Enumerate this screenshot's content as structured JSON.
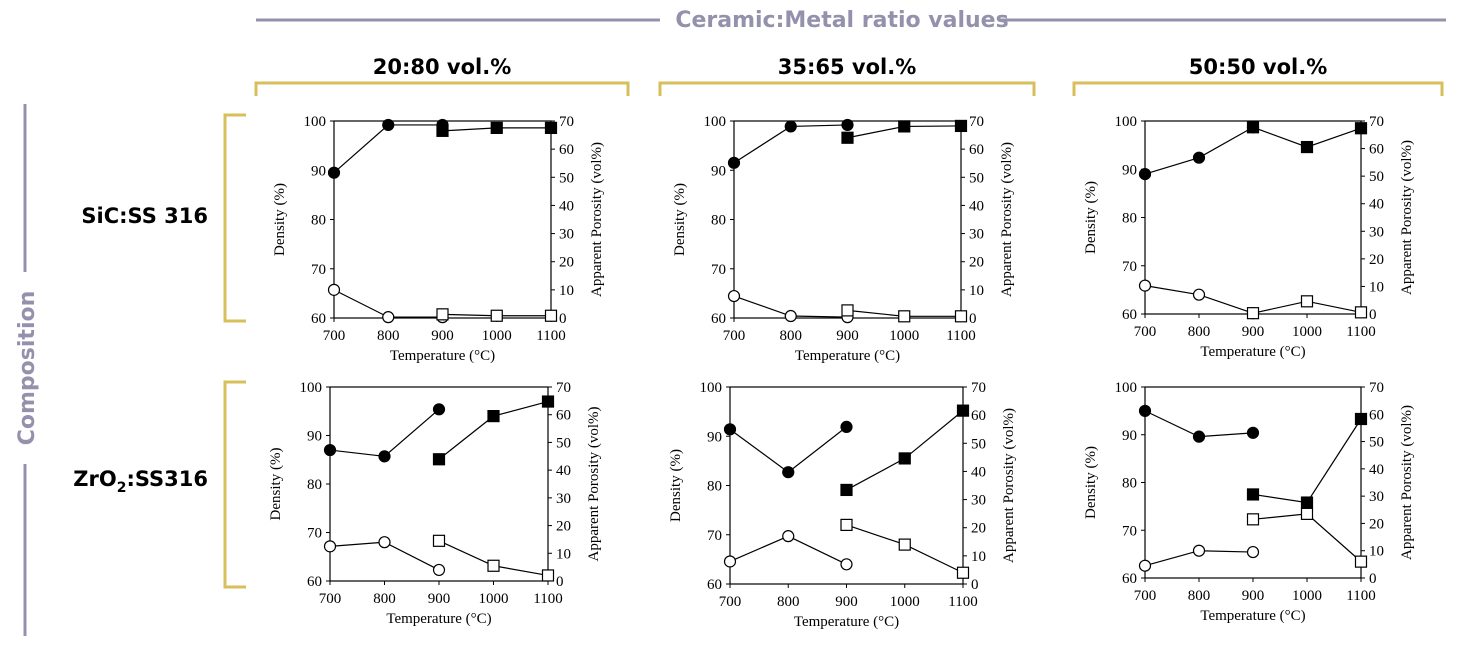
{
  "header": {
    "ratio_title": "Ceramic:Metal ratio values",
    "composition_title": "Composition",
    "columns": [
      "20:80 vol.%",
      "35:65 vol.%",
      "50:50 vol.%"
    ],
    "rows": [
      {
        "base": "SiC:SS 316",
        "sub": ""
      },
      {
        "base": "ZrO",
        "sub": "2",
        "rest": ":SS316"
      }
    ]
  },
  "colors": {
    "accent_gray": "#9491ad",
    "bracket_gold": "#d9bf5c",
    "ink": "#000000"
  },
  "chart_data": [
    {
      "id": "SiC-20:80",
      "type": "line",
      "xlabel": "Temperature (°C)",
      "ylabel": "Density (%)",
      "y2label": "Apparent Porosity (vol%)",
      "x_ticks": [
        700,
        800,
        900,
        1000,
        1100
      ],
      "ylim": [
        60,
        100
      ],
      "y_ticks": [
        60,
        70,
        80,
        90,
        100
      ],
      "y2lim": [
        0,
        70
      ],
      "y2_ticks": [
        0,
        10,
        20,
        30,
        40,
        50,
        60,
        70
      ],
      "series": [
        {
          "marker": "circle",
          "fill": "filled",
          "axis": "left",
          "points": [
            [
              700,
              89.5
            ],
            [
              800,
              99.2
            ],
            [
              900,
              99.2
            ]
          ]
        },
        {
          "marker": "square",
          "fill": "filled",
          "axis": "left",
          "points": [
            [
              900,
              98.0
            ],
            [
              1000,
              98.6
            ],
            [
              1100,
              98.6
            ]
          ]
        },
        {
          "marker": "circle",
          "fill": "open",
          "axis": "right",
          "points": [
            [
              700,
              10
            ],
            [
              800,
              0.3
            ],
            [
              900,
              0.3
            ]
          ]
        },
        {
          "marker": "square",
          "fill": "open",
          "axis": "right",
          "points": [
            [
              900,
              1.3
            ],
            [
              1000,
              0.8
            ],
            [
              1100,
              0.8
            ]
          ]
        }
      ]
    },
    {
      "id": "SiC-35:65",
      "type": "line",
      "xlabel": "Temperature (°C)",
      "ylabel": "Density (%)",
      "y2label": "Apparent Porosity (vol%)",
      "x_ticks": [
        700,
        800,
        900,
        1000,
        1100
      ],
      "ylim": [
        60,
        100
      ],
      "y_ticks": [
        60,
        70,
        80,
        90,
        100
      ],
      "y2lim": [
        0,
        70
      ],
      "y2_ticks": [
        0,
        10,
        20,
        30,
        40,
        50,
        60,
        70
      ],
      "series": [
        {
          "marker": "circle",
          "fill": "filled",
          "axis": "left",
          "points": [
            [
              700,
              91.5
            ],
            [
              800,
              98.9
            ],
            [
              900,
              99.2
            ]
          ]
        },
        {
          "marker": "square",
          "fill": "filled",
          "axis": "left",
          "points": [
            [
              900,
              96.6
            ],
            [
              1000,
              98.9
            ],
            [
              1100,
              99.0
            ]
          ]
        },
        {
          "marker": "circle",
          "fill": "open",
          "axis": "right",
          "points": [
            [
              700,
              7.8
            ],
            [
              800,
              0.7
            ],
            [
              900,
              0.3
            ]
          ]
        },
        {
          "marker": "square",
          "fill": "open",
          "axis": "right",
          "points": [
            [
              900,
              2.7
            ],
            [
              1000,
              0.6
            ],
            [
              1100,
              0.6
            ]
          ]
        }
      ]
    },
    {
      "id": "SiC-50:50",
      "type": "line",
      "xlabel": "Temperature (°C)",
      "ylabel": "Density (%)",
      "y2label": "Apparent Porosity (vol%)",
      "x_ticks": [
        700,
        800,
        900,
        1000,
        1100
      ],
      "ylim": [
        60,
        100
      ],
      "y_ticks": [
        60,
        70,
        80,
        90,
        100
      ],
      "y2lim": [
        0,
        70
      ],
      "y2_ticks": [
        0,
        10,
        20,
        30,
        40,
        50,
        60,
        70
      ],
      "series": [
        {
          "marker": "circle",
          "fill": "filled",
          "axis": "left",
          "points": [
            [
              700,
              89.0
            ],
            [
              800,
              92.4
            ],
            [
              900,
              98.7
            ]
          ]
        },
        {
          "marker": "square",
          "fill": "filled",
          "axis": "left",
          "points": [
            [
              900,
              98.7
            ],
            [
              1000,
              94.6
            ],
            [
              1100,
              98.5
            ]
          ]
        },
        {
          "marker": "circle",
          "fill": "open",
          "axis": "right",
          "points": [
            [
              700,
              10.3
            ],
            [
              800,
              7.0
            ],
            [
              900,
              0.3
            ]
          ]
        },
        {
          "marker": "square",
          "fill": "open",
          "axis": "right",
          "points": [
            [
              900,
              0.3
            ],
            [
              1000,
              4.6
            ],
            [
              1100,
              0.6
            ]
          ]
        }
      ]
    },
    {
      "id": "ZrO2-20:80",
      "type": "line",
      "xlabel": "Temperature (°C)",
      "ylabel": "Density (%)",
      "y2label": "Apparent Porosity (vol%)",
      "x_ticks": [
        700,
        800,
        900,
        1000,
        1100
      ],
      "ylim": [
        60,
        100
      ],
      "y_ticks": [
        60,
        70,
        80,
        90,
        100
      ],
      "y2lim": [
        0,
        70
      ],
      "y2_ticks": [
        0,
        10,
        20,
        30,
        40,
        50,
        60,
        70
      ],
      "series": [
        {
          "marker": "circle",
          "fill": "filled",
          "axis": "left",
          "points": [
            [
              700,
              87.0
            ],
            [
              800,
              85.7
            ],
            [
              900,
              95.4
            ]
          ]
        },
        {
          "marker": "square",
          "fill": "filled",
          "axis": "left",
          "points": [
            [
              900,
              85.1
            ],
            [
              1000,
              94.0
            ],
            [
              1100,
              97.0
            ]
          ]
        },
        {
          "marker": "circle",
          "fill": "open",
          "axis": "right",
          "points": [
            [
              700,
              12.5
            ],
            [
              800,
              14.0
            ],
            [
              900,
              4.0
            ]
          ]
        },
        {
          "marker": "square",
          "fill": "open",
          "axis": "right",
          "points": [
            [
              900,
              14.5
            ],
            [
              1000,
              5.5
            ],
            [
              1100,
              2.0
            ]
          ]
        }
      ]
    },
    {
      "id": "ZrO2-35:65",
      "type": "line",
      "xlabel": "Temperature (°C)",
      "ylabel": "Density (%)",
      "y2label": "Apparent Porosity (vol%)",
      "x_ticks": [
        700,
        800,
        900,
        1000,
        1100
      ],
      "ylim": [
        60,
        100
      ],
      "y_ticks": [
        60,
        70,
        80,
        90,
        100
      ],
      "y2lim": [
        0,
        70
      ],
      "y2_ticks": [
        0,
        10,
        20,
        30,
        40,
        50,
        60,
        70
      ],
      "series": [
        {
          "marker": "circle",
          "fill": "filled",
          "axis": "left",
          "points": [
            [
              700,
              91.4
            ],
            [
              800,
              82.7
            ],
            [
              900,
              91.9
            ]
          ]
        },
        {
          "marker": "square",
          "fill": "filled",
          "axis": "left",
          "points": [
            [
              900,
              79.1
            ],
            [
              1000,
              85.5
            ],
            [
              1100,
              95.2
            ]
          ]
        },
        {
          "marker": "circle",
          "fill": "open",
          "axis": "right",
          "points": [
            [
              700,
              8.0
            ],
            [
              800,
              17.0
            ],
            [
              900,
              7.0
            ]
          ]
        },
        {
          "marker": "square",
          "fill": "open",
          "axis": "right",
          "points": [
            [
              900,
              21.0
            ],
            [
              1000,
              14.0
            ],
            [
              1100,
              4.0
            ]
          ]
        }
      ]
    },
    {
      "id": "ZrO2-50:50",
      "type": "line",
      "xlabel": "Temperature (°C)",
      "ylabel": "Density (%)",
      "y2label": "Apparent Porosity (vol%)",
      "x_ticks": [
        700,
        800,
        900,
        1000,
        1100
      ],
      "ylim": [
        60,
        100
      ],
      "y_ticks": [
        60,
        70,
        80,
        90,
        100
      ],
      "y2lim": [
        0,
        70
      ],
      "y2_ticks": [
        0,
        10,
        20,
        30,
        40,
        50,
        60,
        70
      ],
      "series": [
        {
          "marker": "circle",
          "fill": "filled",
          "axis": "left",
          "points": [
            [
              700,
              95.0
            ],
            [
              800,
              89.6
            ],
            [
              900,
              90.4
            ]
          ]
        },
        {
          "marker": "square",
          "fill": "filled",
          "axis": "left",
          "points": [
            [
              900,
              77.5
            ],
            [
              1000,
              75.8
            ],
            [
              1100,
              93.3
            ]
          ]
        },
        {
          "marker": "circle",
          "fill": "open",
          "axis": "right",
          "points": [
            [
              700,
              4.5
            ],
            [
              800,
              10.0
            ],
            [
              900,
              9.5
            ]
          ]
        },
        {
          "marker": "square",
          "fill": "open",
          "axis": "right",
          "points": [
            [
              900,
              21.5
            ],
            [
              1000,
              23.5
            ],
            [
              1100,
              6.0
            ]
          ]
        }
      ]
    }
  ]
}
